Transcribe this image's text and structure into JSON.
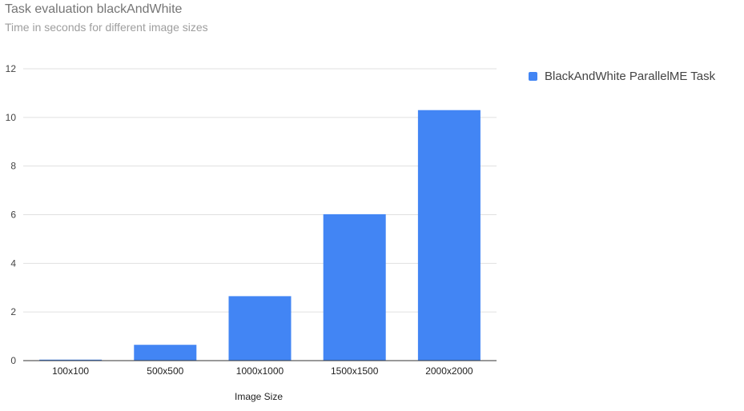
{
  "chart_data": {
    "type": "bar",
    "title": "Task evaluation blackAndWhite",
    "subtitle": "Time in seconds for different image sizes",
    "xlabel": "Image Size",
    "ylabel": "",
    "categories": [
      "100x100",
      "500x500",
      "1000x1000",
      "1500x1500",
      "2000x2000"
    ],
    "series": [
      {
        "name": "BlackAndWhite ParallelME Task",
        "color": "#4285f4",
        "values": [
          0.04,
          0.65,
          2.65,
          6.02,
          10.3
        ]
      }
    ],
    "ylim": [
      0,
      12
    ],
    "yticks": [
      0,
      2,
      4,
      6,
      8,
      10,
      12
    ],
    "grid": true,
    "legend_position": "right"
  }
}
